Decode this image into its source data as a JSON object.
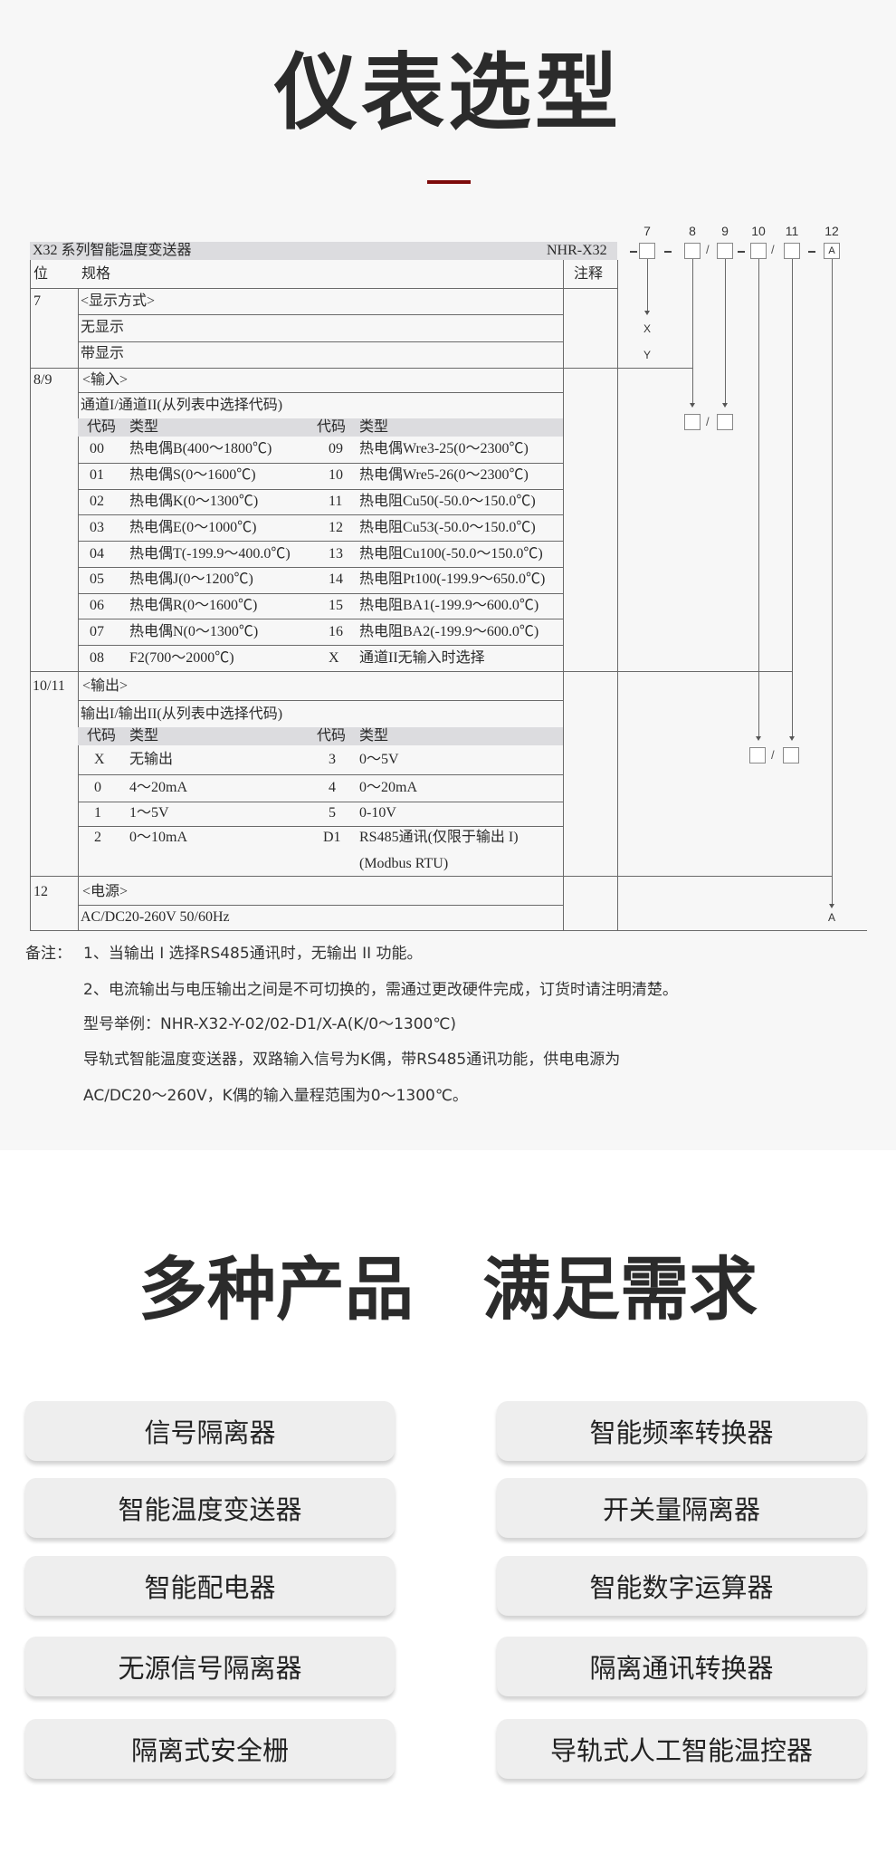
{
  "heading": "仪表选型",
  "table": {
    "title": "X32 系列智能温度变送器",
    "model_prefix": "NHR-X32",
    "col_pos": "位",
    "col_spec": "规格",
    "col_note": "注释",
    "sec7": {
      "pos": "7",
      "label": "<显示方式>",
      "options": [
        "无显示",
        "带显示"
      ],
      "codes": [
        "X",
        "Y"
      ]
    },
    "sec89": {
      "pos": "8/9",
      "label": "<输入>",
      "sub": "通道I/通道II(从列表中选择代码)",
      "hdr_code": "代码",
      "hdr_type": "类型",
      "rows": [
        [
          "00",
          "热电偶B(400～1800℃)",
          "09",
          "热电偶Wre3-25(0～2300℃)"
        ],
        [
          "01",
          "热电偶S(0～1600℃)",
          "10",
          "热电偶Wre5-26(0～2300℃)"
        ],
        [
          "02",
          "热电偶K(0～1300℃)",
          "11",
          "热电阻Cu50(-50.0～150.0℃)"
        ],
        [
          "03",
          "热电偶E(0～1000℃)",
          "12",
          "热电阻Cu53(-50.0～150.0℃)"
        ],
        [
          "04",
          "热电偶T(-199.9～400.0℃)",
          "13",
          "热电阻Cu100(-50.0～150.0℃)"
        ],
        [
          "05",
          "热电偶J(0～1200℃)",
          "14",
          "热电阻Pt100(-199.9～650.0℃)"
        ],
        [
          "06",
          "热电偶R(0～1600℃)",
          "15",
          "热电阻BA1(-199.9～600.0℃)"
        ],
        [
          "07",
          "热电偶N(0～1300℃)",
          "16",
          "热电阻BA2(-199.9～600.0℃)"
        ],
        [
          "08",
          "F2(700～2000℃)",
          "X",
          "通道II无输入时选择"
        ]
      ]
    },
    "sec1011": {
      "pos": "10/11",
      "label": "<输出>",
      "sub": "输出I/输出II(从列表中选择代码)",
      "hdr_code": "代码",
      "hdr_type": "类型",
      "rows": [
        [
          "X",
          "无输出",
          "3",
          "0～5V"
        ],
        [
          "0",
          "4～20mA",
          "4",
          "0～20mA"
        ],
        [
          "1",
          "1～5V",
          "5",
          "0-10V"
        ],
        [
          "2",
          "0～10mA",
          "D1",
          "RS485通讯(仅限于输出 I)"
        ]
      ],
      "extra": "(Modbus  RTU)"
    },
    "sec12": {
      "pos": "12",
      "label": "<电源>",
      "option": "AC/DC20-260V  50/60Hz",
      "code": "A"
    }
  },
  "diagram": {
    "positions": [
      "7",
      "8",
      "9",
      "10",
      "11",
      "12"
    ],
    "fixed_value": "A"
  },
  "notes": {
    "label": "备注：",
    "lines": [
      "1、当输出 I 选择RS485通讯时，无输出 II 功能。",
      "2、电流输出与电压输出之间是不可切换的，需通过更改硬件完成，订货时请注明清楚。",
      "型号举例：NHR-X32-Y-02/02-D1/X-A(K/0～1300℃)",
      "导轨式智能温度变送器，双路输入信号为K偶，带RS485通讯功能，供电电源为",
      "AC/DC20～260V，K偶的输入量程范围为0～1300℃。"
    ]
  },
  "heading2": "多种产品　满足需求",
  "products": [
    "信号隔离器",
    "智能频率转换器",
    "智能温度变送器",
    "开关量隔离器",
    "智能配电器",
    "智能数字运算器",
    "无源信号隔离器",
    "隔离通讯转换器",
    "隔离式安全栅",
    "导轨式人工智能温控器"
  ],
  "colors": {
    "accent": "#7d0a0a",
    "section_bg": "#f7f7f7",
    "button_bg": "#eeeeee"
  }
}
